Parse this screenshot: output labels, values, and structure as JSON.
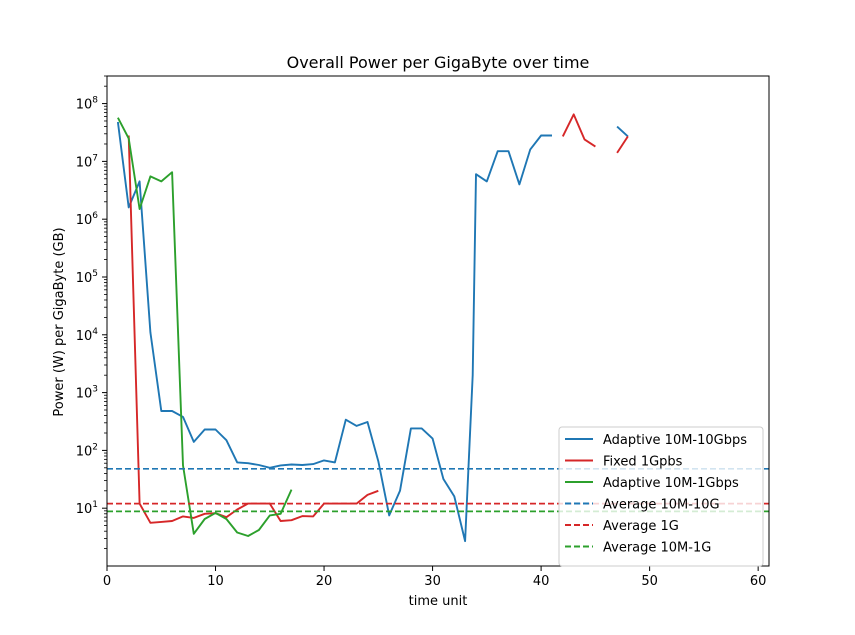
{
  "chart_data": {
    "type": "line",
    "title": "Overall Power per GigaByte over time",
    "xlabel": "time unit",
    "ylabel": "Power (W) per GigaByte (GB)",
    "xlim": [
      0,
      61
    ],
    "ylim": [
      1,
      300000000
    ],
    "yscale": "log",
    "xticks": [
      0,
      10,
      20,
      30,
      40,
      50,
      60
    ],
    "yticks": [
      {
        "value": 10,
        "mant": "10",
        "exp": "1"
      },
      {
        "value": 100,
        "mant": "10",
        "exp": "2"
      },
      {
        "value": 1000,
        "mant": "10",
        "exp": "3"
      },
      {
        "value": 10000,
        "mant": "10",
        "exp": "4"
      },
      {
        "value": 100000,
        "mant": "10",
        "exp": "5"
      },
      {
        "value": 1000000,
        "mant": "10",
        "exp": "6"
      },
      {
        "value": 10000000,
        "mant": "10",
        "exp": "7"
      },
      {
        "value": 100000000,
        "mant": "10",
        "exp": "8"
      }
    ],
    "grid": false,
    "legend_position": "lower-right",
    "series": [
      {
        "name": "Adaptive 10M-10Gbps",
        "color": "#1f77b4",
        "style": "solid",
        "segments": [
          [
            [
              1,
              48000000
            ],
            [
              2,
              1600000
            ],
            [
              3,
              4500000
            ],
            [
              4,
              11000
            ],
            [
              5,
              480
            ],
            [
              6,
              480
            ],
            [
              7,
              380
            ],
            [
              8,
              140
            ],
            [
              9,
              230
            ],
            [
              10,
              230
            ],
            [
              11,
              150
            ],
            [
              12,
              62
            ],
            [
              13,
              60
            ],
            [
              14,
              56
            ],
            [
              15,
              50
            ],
            [
              16,
              55
            ],
            [
              17,
              57
            ],
            [
              18,
              56
            ],
            [
              19,
              58
            ],
            [
              20,
              67
            ],
            [
              21,
              62
            ],
            [
              22,
              340
            ],
            [
              23,
              265
            ],
            [
              24,
              310
            ],
            [
              25,
              65
            ],
            [
              26,
              7.5
            ],
            [
              27,
              20
            ],
            [
              28,
              240
            ],
            [
              29,
              240
            ],
            [
              30,
              160
            ],
            [
              31,
              32
            ],
            [
              32,
              16
            ],
            [
              33,
              2.7
            ],
            [
              33.7,
              2000
            ],
            [
              34,
              6000000
            ],
            [
              35,
              4500000
            ],
            [
              36,
              15000000
            ],
            [
              37,
              15000000
            ],
            [
              38,
              4000000
            ],
            [
              39,
              16000000
            ],
            [
              40,
              28000000
            ],
            [
              41,
              28000000
            ]
          ],
          [
            [
              47,
              40000000
            ],
            [
              48,
              27000000
            ]
          ]
        ]
      },
      {
        "name": "Fixed 1Gpbs",
        "color": "#d62728",
        "style": "solid",
        "segments": [
          [
            [
              2,
              28000000
            ],
            [
              3,
              12
            ],
            [
              4,
              5.6
            ],
            [
              5,
              5.8
            ],
            [
              6,
              6
            ],
            [
              7,
              7.2
            ],
            [
              8,
              6.8
            ],
            [
              9,
              8
            ],
            [
              10,
              8.2
            ],
            [
              11,
              7
            ],
            [
              12,
              9.5
            ],
            [
              13,
              12
            ],
            [
              14,
              12
            ],
            [
              15,
              12
            ],
            [
              16,
              6
            ],
            [
              17,
              6.2
            ],
            [
              18,
              7.3
            ],
            [
              19,
              7.2
            ],
            [
              20,
              12
            ],
            [
              21,
              12
            ],
            [
              22,
              12
            ],
            [
              23,
              12
            ],
            [
              24,
              17
            ],
            [
              25,
              20
            ]
          ],
          [
            [
              42,
              27000000
            ],
            [
              43,
              65000000
            ],
            [
              44,
              24000000
            ],
            [
              45,
              18000000
            ]
          ],
          [
            [
              47,
              14000000
            ],
            [
              48,
              27000000
            ]
          ]
        ]
      },
      {
        "name": "Adaptive 10M-1Gbps",
        "color": "#2ca02c",
        "style": "solid",
        "segments": [
          [
            [
              1,
              57000000
            ],
            [
              2,
              25000000
            ],
            [
              3,
              1500000
            ],
            [
              4,
              5500000
            ],
            [
              5,
              4500000
            ],
            [
              6,
              6500000
            ],
            [
              7,
              55
            ],
            [
              8,
              3.6
            ],
            [
              9,
              6.5
            ],
            [
              10,
              8.3
            ],
            [
              11,
              6.5
            ],
            [
              12,
              3.8
            ],
            [
              13,
              3.3
            ],
            [
              14,
              4.2
            ],
            [
              15,
              7.5
            ],
            [
              16,
              8
            ],
            [
              17,
              21
            ]
          ]
        ]
      },
      {
        "name": "Average 10M-10G",
        "color": "#1f77b4",
        "style": "dashed",
        "value": 48
      },
      {
        "name": "Average 1G",
        "color": "#d62728",
        "style": "dashed",
        "value": 12
      },
      {
        "name": "Average 10M-1G",
        "color": "#2ca02c",
        "style": "dashed",
        "value": 8.8
      }
    ]
  }
}
